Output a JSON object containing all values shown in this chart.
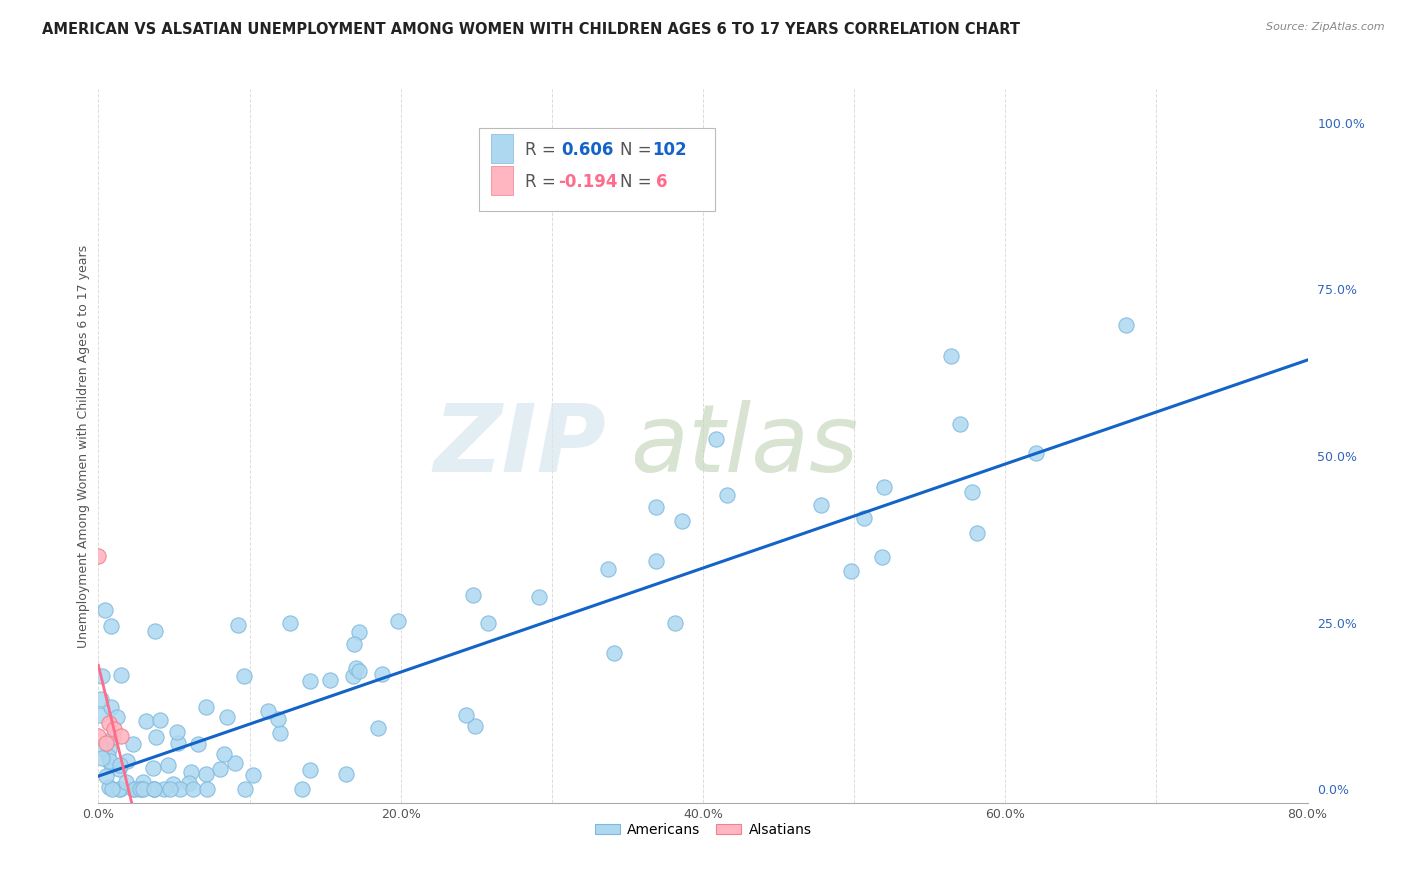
{
  "title": "AMERICAN VS ALSATIAN UNEMPLOYMENT AMONG WOMEN WITH CHILDREN AGES 6 TO 17 YEARS CORRELATION CHART",
  "source": "Source: ZipAtlas.com",
  "ylabel": "Unemployment Among Women with Children Ages 6 to 17 years",
  "r_american": 0.606,
  "n_american": 102,
  "r_alsatian": -0.194,
  "n_alsatian": 6,
  "american_color": "#ADD8F0",
  "alsatian_color": "#FFB6C1",
  "trendline_american_color": "#1464C8",
  "trendline_alsatian_color": "#FF6B8A",
  "watermark_zip": "ZIP",
  "watermark_atlas": "atlas",
  "xlim": [
    0.0,
    0.8
  ],
  "ylim": [
    -0.02,
    1.05
  ],
  "xtick_positions": [
    0.0,
    0.1,
    0.2,
    0.3,
    0.4,
    0.5,
    0.6,
    0.7,
    0.8
  ],
  "xtick_labels": [
    "0.0%",
    "",
    "20.0%",
    "",
    "40.0%",
    "",
    "60.0%",
    "",
    "80.0%"
  ],
  "yticks_right": [
    0.0,
    0.25,
    0.5,
    0.75,
    1.0
  ],
  "ytick_right_labels": [
    "0.0%",
    "25.0%",
    "50.0%",
    "75.0%",
    "100.0%"
  ],
  "background_color": "#FFFFFF",
  "grid_color": "#DCDCDC",
  "title_fontsize": 10.5,
  "legend_fontsize": 12
}
